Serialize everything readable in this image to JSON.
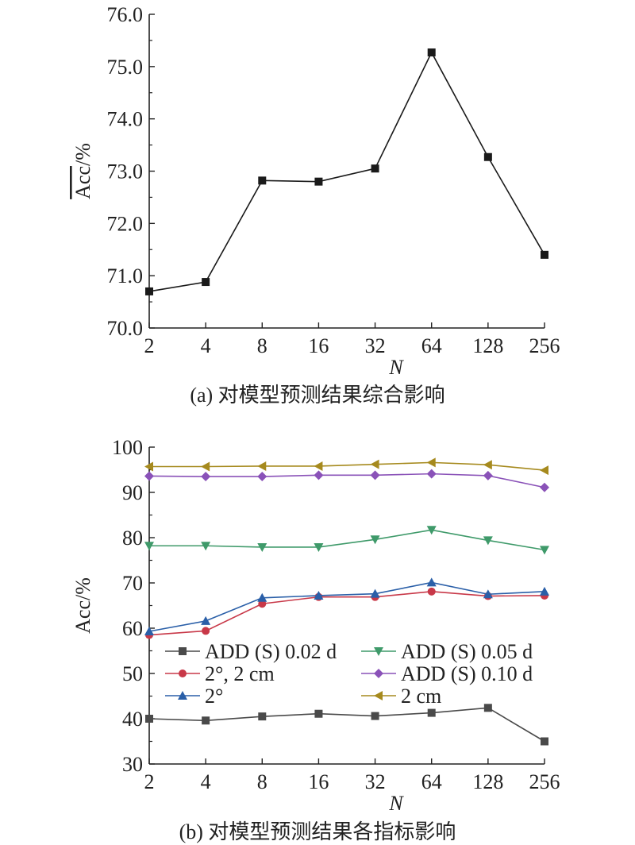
{
  "chart_data": [
    {
      "type": "line",
      "panel": "a",
      "caption": "(a) 对模型预测结果综合影响",
      "xlabel": "N",
      "ylabel_base": "Acc",
      "ylabel_suffix": "/%",
      "ylabel_overline": true,
      "categories": [
        "2",
        "4",
        "8",
        "16",
        "32",
        "64",
        "128",
        "256"
      ],
      "ylim": [
        70.0,
        76.0
      ],
      "yticks": [
        "70.0",
        "71.0",
        "72.0",
        "73.0",
        "74.0",
        "75.0",
        "76.0"
      ],
      "grid": false,
      "series": [
        {
          "values": [
            70.7,
            70.88,
            72.82,
            72.8,
            73.05,
            75.27,
            73.27,
            71.4
          ],
          "color": "#1a1a1a",
          "marker": "square"
        }
      ]
    },
    {
      "type": "line",
      "panel": "b",
      "caption": "(b) 对模型预测结果各指标影响",
      "xlabel": "N",
      "ylabel": "Acc/%",
      "categories": [
        "2",
        "4",
        "8",
        "16",
        "32",
        "64",
        "128",
        "256"
      ],
      "ylim": [
        30,
        100
      ],
      "yticks": [
        "30",
        "40",
        "50",
        "60",
        "70",
        "80",
        "90",
        "100"
      ],
      "grid": false,
      "legend_position": "center-left",
      "series": [
        {
          "name": "ADD (S) 0.02 d",
          "color": "#4a4a4a",
          "marker": "square",
          "values": [
            40.0,
            39.6,
            40.5,
            41.1,
            40.6,
            41.3,
            42.4,
            35.0
          ]
        },
        {
          "name": "ADD (S) 0.05 d",
          "color": "#3f9a6a",
          "marker": "triangle-down",
          "values": [
            78.2,
            78.2,
            77.9,
            77.9,
            79.6,
            81.7,
            79.4,
            77.3
          ]
        },
        {
          "name": "2°, 2 cm",
          "color": "#c83848",
          "marker": "circle",
          "values": [
            58.5,
            59.4,
            65.4,
            66.9,
            66.9,
            68.1,
            67.1,
            67.2
          ]
        },
        {
          "name": "ADD (S) 0.10 d",
          "color": "#8a52b8",
          "marker": "diamond",
          "values": [
            93.6,
            93.5,
            93.5,
            93.8,
            93.8,
            94.1,
            93.7,
            91.1
          ]
        },
        {
          "name": "2°",
          "color": "#2a5fa8",
          "marker": "triangle-up",
          "values": [
            59.3,
            61.6,
            66.7,
            67.2,
            67.6,
            70.1,
            67.5,
            68.1
          ]
        },
        {
          "name": "2 cm",
          "color": "#a68a1e",
          "marker": "triangle-left",
          "values": [
            95.7,
            95.7,
            95.8,
            95.8,
            96.2,
            96.6,
            96.1,
            94.9
          ]
        }
      ]
    }
  ]
}
